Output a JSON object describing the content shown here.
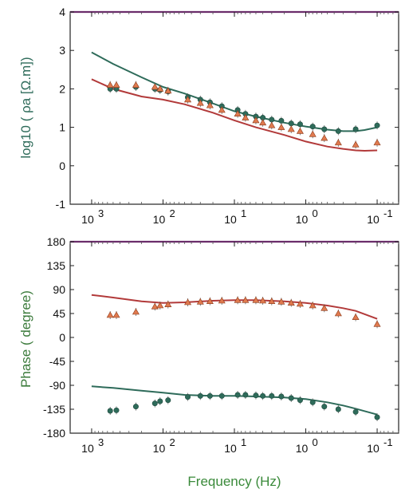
{
  "chart_data": [
    {
      "type": "line",
      "xlabel": "",
      "ylabel": "log10 ( ρa [Ω.m])",
      "xscale": "log",
      "x_reversed": true,
      "xlim": [
        2000,
        0.05
      ],
      "ylim": [
        -1,
        4
      ],
      "x_ticks": [
        {
          "value": 1000,
          "mantissa": "10",
          "exp": "3"
        },
        {
          "value": 100,
          "mantissa": "10",
          "exp": "2"
        },
        {
          "value": 10,
          "mantissa": "10",
          "exp": "1"
        },
        {
          "value": 1,
          "mantissa": "10",
          "exp": "0"
        },
        {
          "value": 0.1,
          "mantissa": "10",
          "exp": "-1"
        }
      ],
      "y_ticks": [
        "-1",
        "0",
        "1",
        "2",
        "3",
        "4"
      ],
      "series": [
        {
          "kind": "line",
          "color": "#2e6b5a",
          "x": [
            1000,
            500,
            200,
            100,
            50,
            20,
            10,
            5,
            2,
            1,
            0.5,
            0.3,
            0.2,
            0.15,
            0.1
          ],
          "y": [
            2.95,
            2.65,
            2.3,
            2.05,
            1.88,
            1.62,
            1.42,
            1.28,
            1.12,
            1.02,
            0.94,
            0.9,
            0.9,
            0.93,
            1.0
          ]
        },
        {
          "kind": "line",
          "color": "#b23a3a",
          "x": [
            1000,
            500,
            200,
            100,
            50,
            20,
            10,
            5,
            2,
            1,
            0.5,
            0.3,
            0.2,
            0.15,
            0.1
          ],
          "y": [
            2.25,
            2.0,
            1.8,
            1.72,
            1.6,
            1.38,
            1.18,
            1.0,
            0.8,
            0.63,
            0.5,
            0.44,
            0.4,
            0.39,
            0.4
          ]
        },
        {
          "kind": "points",
          "marker": "circle",
          "color": "#2e6b5a",
          "x": [
            550,
            450,
            240,
            130,
            110,
            85,
            45,
            30,
            22,
            15,
            9,
            7,
            5,
            4,
            3,
            2.2,
            1.6,
            1.2,
            0.8,
            0.55,
            0.35,
            0.2,
            0.1
          ],
          "y": [
            2.0,
            2.0,
            2.05,
            2.0,
            1.97,
            1.93,
            1.78,
            1.72,
            1.65,
            1.55,
            1.45,
            1.35,
            1.28,
            1.25,
            1.2,
            1.17,
            1.1,
            1.08,
            1.02,
            0.95,
            0.9,
            0.95,
            1.05
          ]
        },
        {
          "kind": "points",
          "marker": "triangle",
          "color": "#e07a4f",
          "x": [
            550,
            450,
            240,
            130,
            110,
            85,
            45,
            30,
            22,
            15,
            9,
            7,
            5,
            4,
            3,
            2.2,
            1.6,
            1.2,
            0.8,
            0.55,
            0.35,
            0.2,
            0.1
          ],
          "y": [
            2.1,
            2.1,
            2.1,
            2.05,
            2.0,
            1.95,
            1.72,
            1.63,
            1.57,
            1.45,
            1.35,
            1.25,
            1.18,
            1.12,
            1.05,
            1.0,
            0.95,
            0.9,
            0.82,
            0.72,
            0.6,
            0.55,
            0.6
          ]
        }
      ]
    },
    {
      "type": "line",
      "xlabel": "Frequency (Hz)",
      "ylabel": "Phase ( degree)",
      "xscale": "log",
      "x_reversed": true,
      "xlim": [
        2000,
        0.05
      ],
      "ylim": [
        -180,
        180
      ],
      "x_ticks": [
        {
          "value": 1000,
          "mantissa": "10",
          "exp": "3"
        },
        {
          "value": 100,
          "mantissa": "10",
          "exp": "2"
        },
        {
          "value": 10,
          "mantissa": "10",
          "exp": "1"
        },
        {
          "value": 1,
          "mantissa": "10",
          "exp": "0"
        },
        {
          "value": 0.1,
          "mantissa": "10",
          "exp": "-1"
        }
      ],
      "y_ticks": [
        "-180",
        "-135",
        "-90",
        "-45",
        "0",
        "45",
        "90",
        "135",
        "180"
      ],
      "series": [
        {
          "kind": "line",
          "color": "#b23a3a",
          "x": [
            1000,
            500,
            200,
            100,
            50,
            20,
            10,
            5,
            2,
            1,
            0.5,
            0.3,
            0.2,
            0.1
          ],
          "y": [
            80,
            75,
            68,
            65,
            66,
            69,
            70,
            70,
            68,
            65,
            60,
            55,
            50,
            35
          ]
        },
        {
          "kind": "line",
          "color": "#2e6b5a",
          "x": [
            1000,
            500,
            200,
            100,
            50,
            20,
            10,
            5,
            2,
            1,
            0.5,
            0.3,
            0.2,
            0.1
          ],
          "y": [
            -92,
            -95,
            -100,
            -104,
            -108,
            -110,
            -110,
            -111,
            -113,
            -116,
            -122,
            -128,
            -134,
            -145
          ]
        },
        {
          "kind": "points",
          "marker": "triangle",
          "color": "#e07a4f",
          "x": [
            550,
            450,
            240,
            130,
            110,
            85,
            45,
            30,
            22,
            15,
            9,
            7,
            5,
            4,
            3,
            2.2,
            1.6,
            1.2,
            0.8,
            0.55,
            0.35,
            0.2,
            0.1
          ],
          "y": [
            42,
            42,
            48,
            58,
            60,
            62,
            66,
            67,
            68,
            69,
            70,
            70,
            70,
            69,
            68,
            67,
            65,
            63,
            60,
            55,
            45,
            38,
            25
          ]
        },
        {
          "kind": "points",
          "marker": "circle",
          "color": "#2e6b5a",
          "x": [
            550,
            450,
            240,
            130,
            110,
            85,
            45,
            30,
            22,
            15,
            9,
            7,
            5,
            4,
            3,
            2.2,
            1.6,
            1.2,
            0.8,
            0.55,
            0.35,
            0.2,
            0.1
          ],
          "y": [
            -138,
            -137,
            -130,
            -124,
            -120,
            -118,
            -112,
            -110,
            -110,
            -110,
            -108,
            -108,
            -109,
            -110,
            -110,
            -111,
            -114,
            -118,
            -122,
            -130,
            -135,
            -140,
            -150
          ]
        }
      ]
    }
  ],
  "colors": {
    "frame": "#222222",
    "top_border": "#6b2d6b",
    "ylabel_top": "#2e6b5a",
    "ylabel_bottom": "#3a7a3a",
    "xlabel": "#3a8a3a"
  }
}
